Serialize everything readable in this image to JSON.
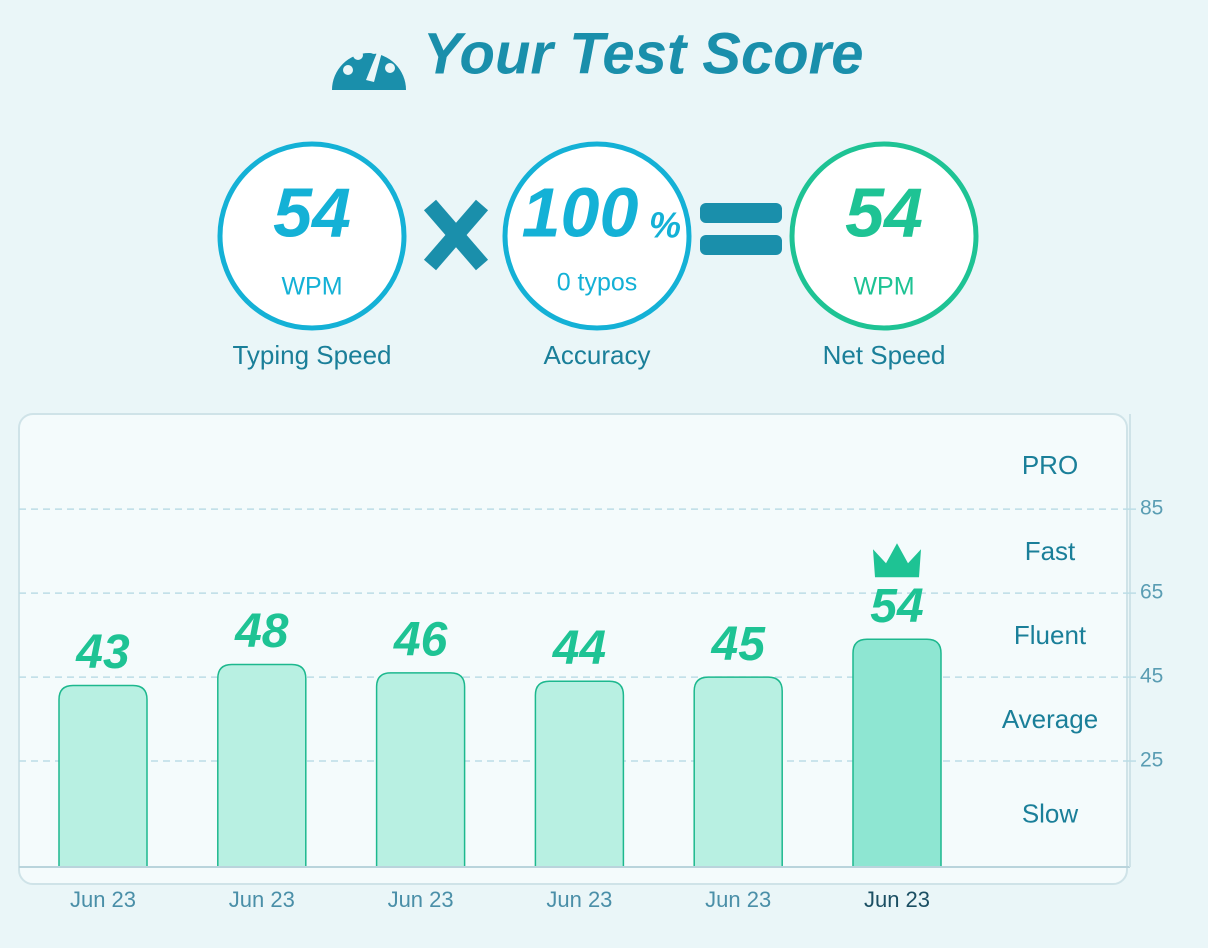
{
  "header": {
    "title": "Your Test Score"
  },
  "scores": [
    {
      "value": 54,
      "unit": "WPM",
      "label": "Typing Speed"
    },
    {
      "value": 100,
      "unit": "%",
      "detail": "0 typos",
      "label": "Accuracy"
    },
    {
      "value": 54,
      "unit": "WPM",
      "label": "Net Speed"
    }
  ],
  "chart_data": {
    "type": "bar",
    "categories": [
      "Jun 23",
      "Jun 23",
      "Jun 23",
      "Jun 23",
      "Jun 23",
      "Jun 23"
    ],
    "values": [
      43,
      48,
      46,
      44,
      45,
      54
    ],
    "color": "#b8f0e2",
    "ylim": [
      0,
      106
    ],
    "yticks": [
      25,
      45,
      65,
      85
    ],
    "bands": [
      "Slow",
      "Average",
      "Fluent",
      "Fast",
      "PRO"
    ],
    "grid": true
  }
}
